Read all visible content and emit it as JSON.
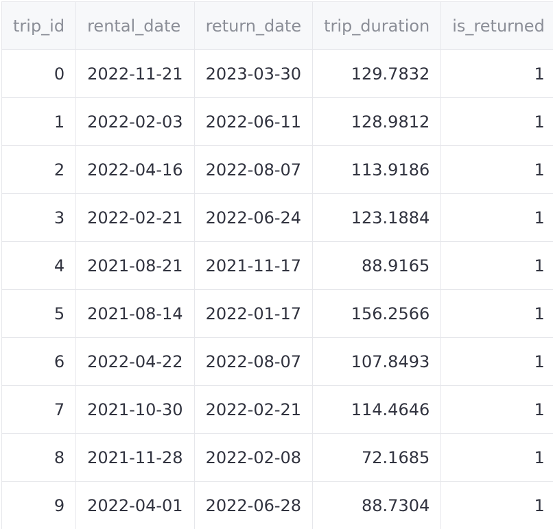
{
  "table": {
    "columns": [
      "trip_id",
      "rental_date",
      "return_date",
      "trip_duration",
      "is_returned"
    ],
    "rows": [
      [
        "0",
        "2022-11-21",
        "2023-03-30",
        "129.7832",
        "1"
      ],
      [
        "1",
        "2022-02-03",
        "2022-06-11",
        "128.9812",
        "1"
      ],
      [
        "2",
        "2022-04-16",
        "2022-08-07",
        "113.9186",
        "1"
      ],
      [
        "3",
        "2022-02-21",
        "2022-06-24",
        "123.1884",
        "1"
      ],
      [
        "4",
        "2021-08-21",
        "2021-11-17",
        "88.9165",
        "1"
      ],
      [
        "5",
        "2021-08-14",
        "2022-01-17",
        "156.2566",
        "1"
      ],
      [
        "6",
        "2022-04-22",
        "2022-08-07",
        "107.8493",
        "1"
      ],
      [
        "7",
        "2021-10-30",
        "2022-02-21",
        "114.4646",
        "1"
      ],
      [
        "8",
        "2021-11-28",
        "2022-02-08",
        "72.1685",
        "1"
      ],
      [
        "9",
        "2022-04-01",
        "2022-06-28",
        "88.7304",
        "1"
      ]
    ]
  },
  "colors": {
    "header_bg": "#f7f8fa",
    "header_text": "#8b8e97",
    "cell_text": "#31333f",
    "grid_line": "#e6e7eb"
  }
}
